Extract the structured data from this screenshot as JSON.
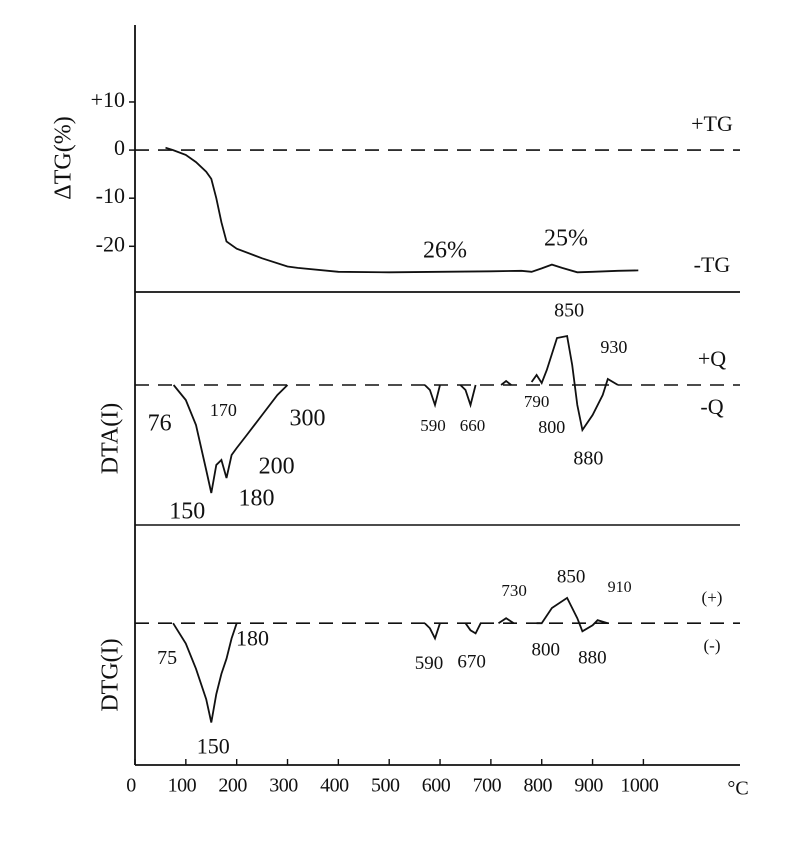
{
  "chart_data": [
    {
      "type": "line",
      "y_label": "ΔTG(%)",
      "upper_label": "+TG",
      "lower_label": "-TG",
      "annotations": [
        "26%",
        "25%"
      ],
      "x": [
        60,
        75,
        100,
        120,
        140,
        150,
        160,
        170,
        180,
        200,
        250,
        300,
        320,
        400,
        500,
        600,
        700,
        760,
        780,
        800,
        820,
        840,
        870,
        900,
        950,
        990
      ],
      "values": [
        0.5,
        0,
        -1,
        -2.5,
        -4.5,
        -6,
        -10,
        -15,
        -19,
        -20.5,
        -22.5,
        -24.2,
        -24.5,
        -25.3,
        -25.4,
        -25.3,
        -25.2,
        -25.1,
        -25.3,
        -24.6,
        -23.8,
        -24.5,
        -25.4,
        -25.3,
        -25.1,
        -25
      ],
      "ylim": [
        -29.5,
        26
      ],
      "yticks": [
        {
          "value": 10,
          "label": "+10"
        },
        0,
        -10,
        -20
      ],
      "color": "#111111",
      "zero_line": true
    },
    {
      "type": "line",
      "y_label": "DTA(I)",
      "upper_label": "+Q",
      "lower_label": "-Q",
      "x": [
        76,
        100,
        120,
        140,
        150,
        160,
        170,
        180,
        190,
        200,
        220,
        250,
        280,
        300,
        430,
        570,
        580,
        590,
        600,
        620,
        640,
        650,
        660,
        670,
        700,
        720,
        730,
        740,
        760,
        780,
        790,
        800,
        810,
        830,
        850,
        860,
        870,
        880,
        900,
        920,
        930,
        950
      ],
      "values": [
        0,
        -1.5,
        -4,
        -8.5,
        -10.8,
        -8,
        -7.5,
        -9.3,
        -7,
        -6.3,
        -5,
        -3,
        -1,
        0,
        null,
        0,
        -0.5,
        -2,
        0,
        null,
        0,
        -0.5,
        -2,
        0,
        null,
        0,
        0.4,
        0,
        null,
        0.3,
        1,
        0.2,
        1.5,
        4.7,
        4.9,
        2,
        -2,
        -4.5,
        -3,
        -1,
        0.6,
        0
      ],
      "peak_labels": [
        76,
        150,
        170,
        180,
        200,
        300,
        590,
        660,
        790,
        800,
        850,
        880,
        930
      ],
      "ylim": [
        -14,
        9.3
      ],
      "color": "#111111",
      "zero_line": true
    },
    {
      "type": "line",
      "y_label": "DTG(I)",
      "upper_label": "(+)",
      "lower_label": "(-)",
      "x_label": "°C",
      "x": [
        75,
        100,
        120,
        140,
        150,
        160,
        170,
        180,
        190,
        200,
        400,
        570,
        580,
        590,
        600,
        620,
        650,
        660,
        670,
        680,
        700,
        715,
        730,
        745,
        770,
        790,
        800,
        820,
        850,
        870,
        880,
        900,
        910,
        930
      ],
      "values": [
        0,
        -2,
        -4.5,
        -7.5,
        -9.8,
        -7,
        -5,
        -3.5,
        -1.5,
        0,
        null,
        0,
        -0.5,
        -1.5,
        0,
        null,
        0,
        -0.7,
        -1,
        0,
        null,
        0,
        0.5,
        0,
        null,
        0,
        0,
        1.5,
        2.5,
        0.5,
        -0.8,
        -0.2,
        0.3,
        0
      ],
      "peak_labels": [
        75,
        150,
        180,
        590,
        670,
        730,
        800,
        850,
        880,
        910
      ],
      "ylim": [
        -14,
        9.7
      ],
      "xlim": [
        0,
        1190
      ],
      "xticks": [
        0,
        100,
        200,
        300,
        400,
        500,
        600,
        700,
        800,
        900,
        1000
      ],
      "color": "#111111",
      "zero_line": true
    }
  ]
}
